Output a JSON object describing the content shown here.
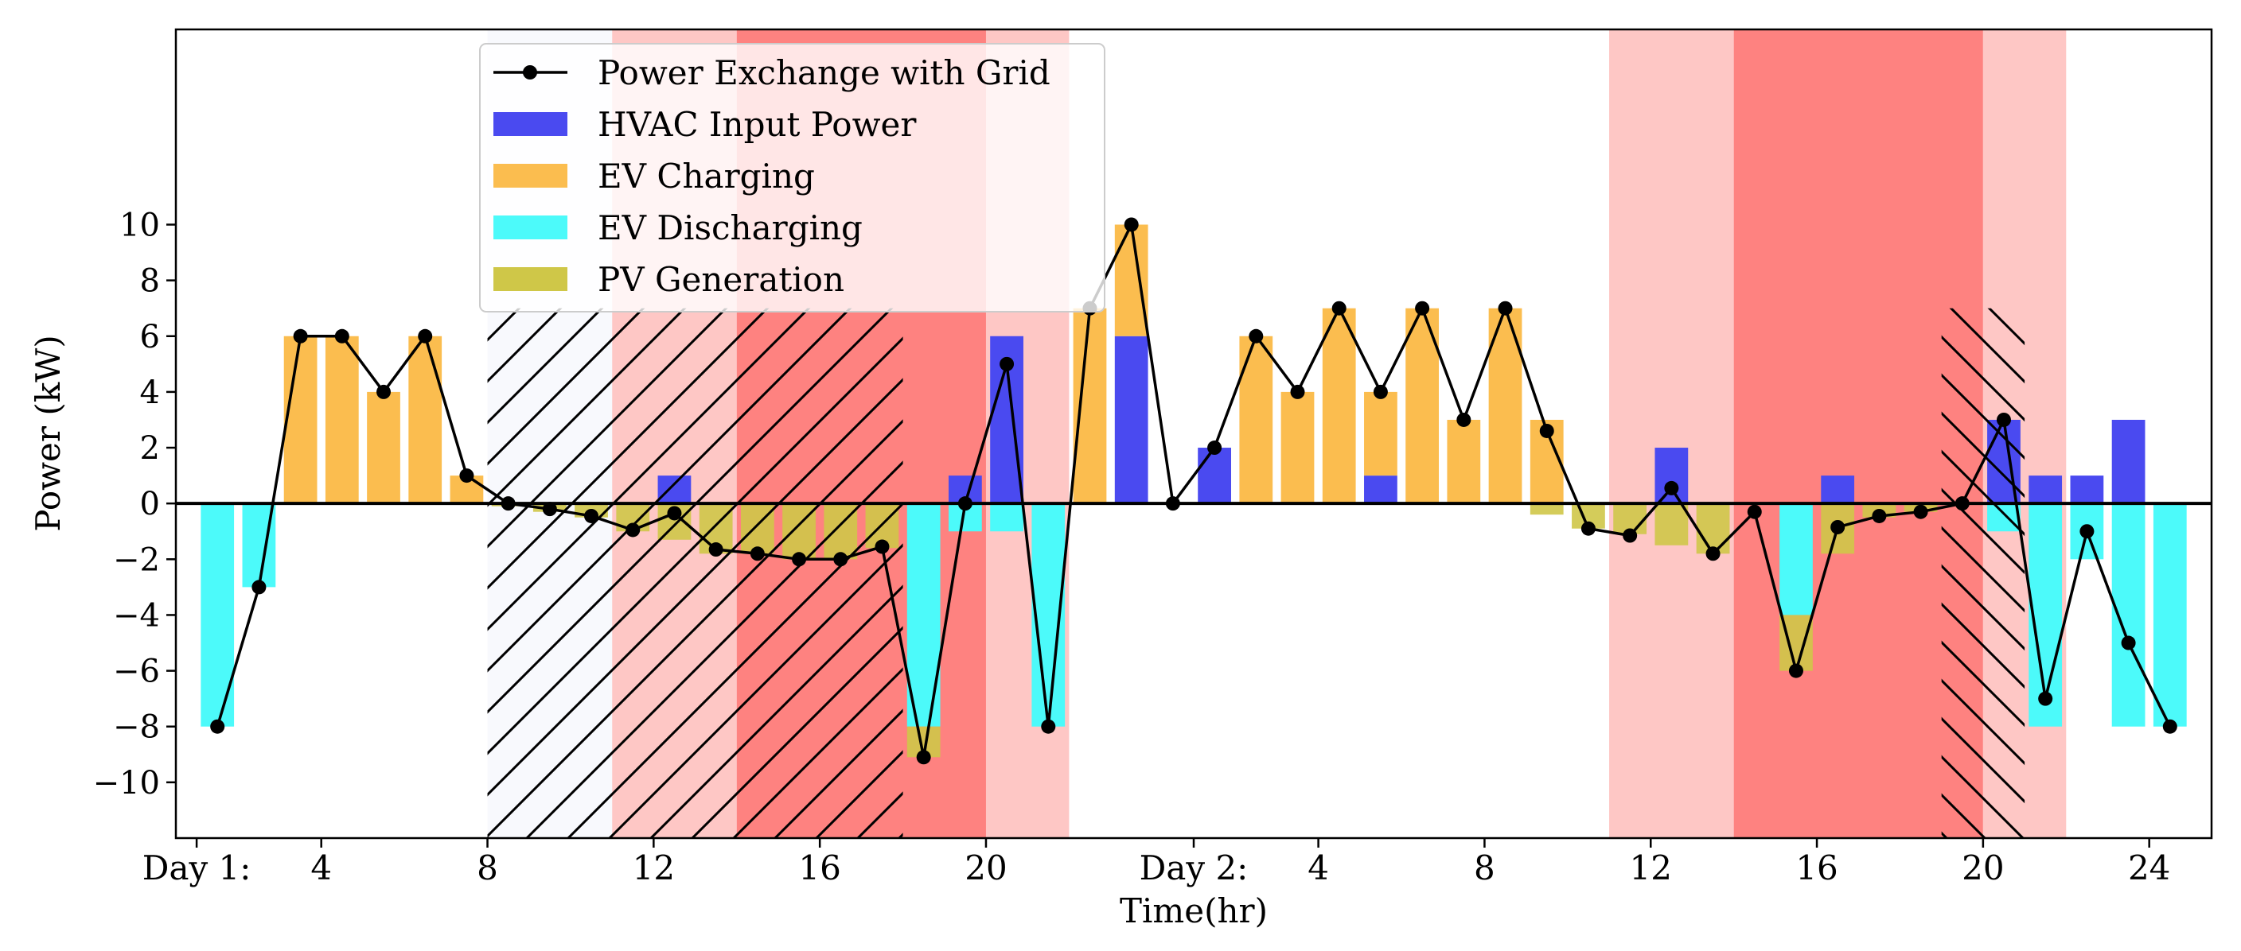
{
  "chart_data": {
    "type": "bar",
    "title": "",
    "xlabel": "Time(hr)",
    "ylabel": "Power (kW)",
    "ylim": [
      -12,
      17
    ],
    "xlim": [
      0.5,
      49.5
    ],
    "grid": false,
    "legend_position": "top-left",
    "x_ticks": [
      {
        "x": 1,
        "label": "Day 1:"
      },
      {
        "x": 4,
        "label": "4"
      },
      {
        "x": 8,
        "label": "8"
      },
      {
        "x": 12,
        "label": "12"
      },
      {
        "x": 16,
        "label": "16"
      },
      {
        "x": 20,
        "label": "20"
      },
      {
        "x": 25,
        "label": "Day 2:"
      },
      {
        "x": 28,
        "label": "4"
      },
      {
        "x": 32,
        "label": "8"
      },
      {
        "x": 36,
        "label": "12"
      },
      {
        "x": 40,
        "label": "16"
      },
      {
        "x": 44,
        "label": "20"
      },
      {
        "x": 48,
        "label": "24"
      }
    ],
    "y_ticks": [
      -10,
      -8,
      -6,
      -4,
      -2,
      0,
      2,
      4,
      6,
      8,
      10
    ],
    "x": [
      1.5,
      2.5,
      3.5,
      4.5,
      5.5,
      6.5,
      7.5,
      8.5,
      9.5,
      10.5,
      11.5,
      12.5,
      13.5,
      14.5,
      15.5,
      16.5,
      17.5,
      18.5,
      19.5,
      20.5,
      21.5,
      22.5,
      23.5,
      24.5,
      25.5,
      26.5,
      27.5,
      28.5,
      29.5,
      30.5,
      31.5,
      32.5,
      33.5,
      34.5,
      35.5,
      36.5,
      37.5,
      38.5,
      39.5,
      40.5,
      41.5,
      42.5,
      43.5,
      44.5,
      45.5,
      46.5,
      47.5,
      48.5
    ],
    "price_periods": [
      {
        "start": 11,
        "end": 14,
        "level": "mid"
      },
      {
        "start": 14,
        "end": 20,
        "level": "high"
      },
      {
        "start": 20,
        "end": 22,
        "level": "mid"
      },
      {
        "start": 35,
        "end": 38,
        "level": "mid"
      },
      {
        "start": 38,
        "end": 44,
        "level": "high"
      },
      {
        "start": 44,
        "end": 46,
        "level": "mid"
      }
    ],
    "hatched_periods": [
      {
        "start": 8,
        "end": 18,
        "hatch": "/"
      },
      {
        "start": 43,
        "end": 45,
        "hatch": "\\"
      }
    ],
    "colors": {
      "grid_line": "#000000",
      "hvac": "#4a4af0",
      "ev_charging": "#fbbd4f",
      "ev_discharging": "#4cfafa",
      "pv": "#cfc748",
      "price_mid": "#fec7c5",
      "price_high": "#fe8280",
      "hatch_bg": "#f8f9fd"
    },
    "series": [
      {
        "name": "Power Exchange with Grid",
        "kind": "line",
        "values": [
          -8,
          -3,
          6,
          6,
          4,
          6,
          1,
          0,
          -0.2,
          -0.45,
          -0.95,
          -0.35,
          -1.65,
          -1.8,
          -2,
          -2,
          -1.55,
          -9.1,
          0,
          5,
          -8,
          7,
          10,
          0,
          2,
          6,
          4,
          7,
          4,
          7,
          3,
          7,
          2.6,
          -0.9,
          -1.15,
          0.55,
          -1.8,
          -0.3,
          -6,
          -0.85,
          -0.45,
          -0.3,
          0,
          3,
          -7,
          -1,
          -5,
          -8
        ]
      },
      {
        "name": "HVAC Input Power",
        "kind": "bar",
        "values": [
          0,
          0,
          0,
          0,
          0,
          0,
          0,
          0,
          0,
          0,
          0,
          1,
          0,
          0,
          0,
          0,
          0,
          0,
          1,
          6,
          0,
          0,
          6,
          0,
          2,
          0,
          0,
          0,
          1,
          0,
          0,
          0,
          0,
          0,
          0,
          2,
          0,
          0,
          0,
          1,
          0,
          0,
          0,
          3,
          1,
          1,
          3,
          0
        ]
      },
      {
        "name": "EV Charging",
        "kind": "bar",
        "values": [
          0,
          0,
          6,
          6,
          4,
          6,
          1,
          0,
          0,
          0,
          0,
          0,
          0,
          0,
          0,
          0,
          0,
          0,
          0,
          0,
          0,
          7,
          4,
          0,
          0,
          6,
          4,
          7,
          3,
          7,
          3,
          7,
          3,
          0,
          0,
          0,
          0,
          0,
          0,
          0,
          0,
          0,
          0,
          0,
          0,
          0,
          0,
          0
        ]
      },
      {
        "name": "EV Discharging",
        "kind": "bar",
        "values": [
          -8,
          -3,
          0,
          0,
          0,
          0,
          0,
          0,
          0,
          0,
          0,
          0,
          0,
          0,
          0,
          0,
          0,
          -8,
          -1,
          -1,
          -8,
          0,
          0,
          0,
          0,
          0,
          0,
          0,
          0,
          0,
          0,
          0,
          0,
          0,
          0,
          0,
          0,
          0,
          -4,
          0,
          0,
          0,
          0,
          -1,
          -8,
          -2,
          -8,
          -8
        ]
      },
      {
        "name": "PV Generation",
        "kind": "bar",
        "values": [
          0,
          0,
          0,
          0,
          0,
          0,
          0,
          -0.1,
          -0.3,
          -0.5,
          -1,
          -1.3,
          -1.8,
          -1.8,
          -2,
          -2,
          -1.6,
          -1.1,
          0,
          0,
          0,
          0,
          0,
          0,
          0,
          0,
          0,
          0,
          0,
          0,
          0,
          0,
          -0.4,
          -0.9,
          -1.1,
          -1.5,
          -1.8,
          0,
          -2,
          -1.8,
          -0.5,
          -0.3,
          0,
          0,
          0,
          0,
          0,
          0
        ]
      }
    ]
  }
}
